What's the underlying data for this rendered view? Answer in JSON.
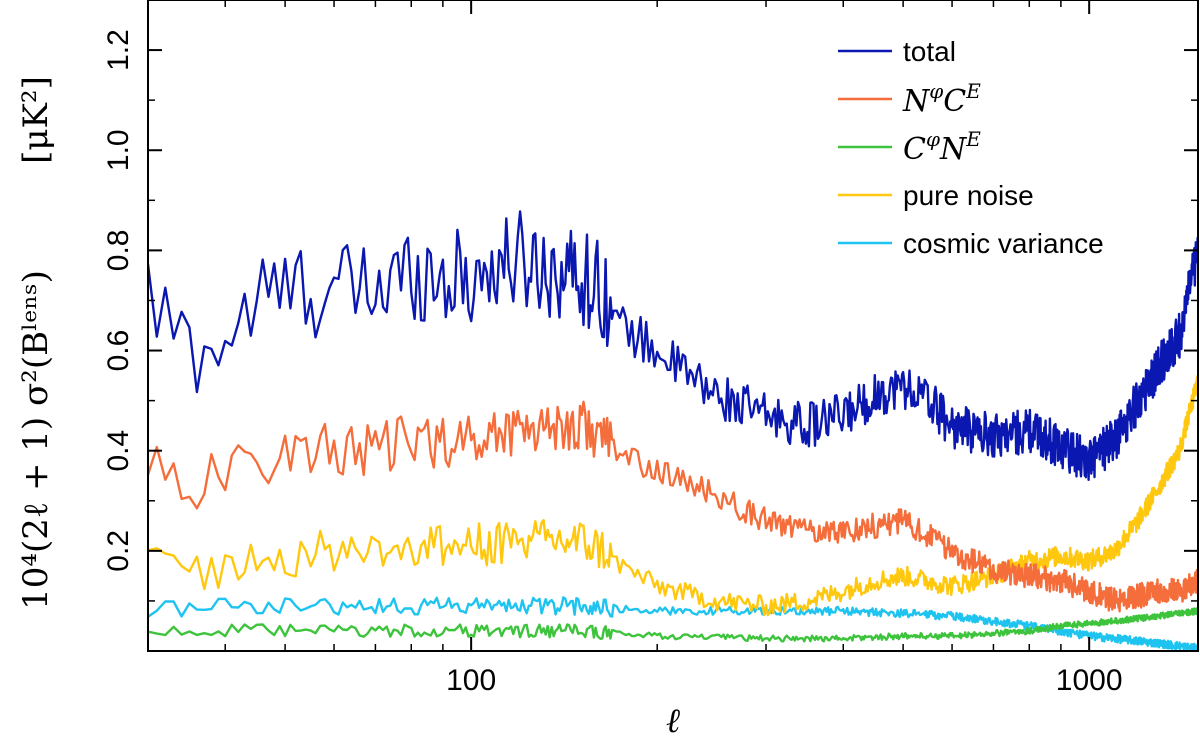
{
  "chart_data": {
    "type": "line",
    "xlabel": "ℓ",
    "ylabel": "10⁴(2ℓ + 1) σ²(Bˡᵉⁿˢ)",
    "yunit": "[μK²]",
    "xscale": "log",
    "xlim": [
      30,
      1500
    ],
    "ylim": [
      0,
      1.3
    ],
    "xticks": [
      {
        "value": 100,
        "label": "100"
      },
      {
        "value": 1000,
        "label": "1000"
      }
    ],
    "yticks": [
      {
        "value": 0.2,
        "label": "0.2"
      },
      {
        "value": 0.4,
        "label": "0.4"
      },
      {
        "value": 0.6,
        "label": "0.6"
      },
      {
        "value": 0.8,
        "label": "0.8"
      },
      {
        "value": 1.0,
        "label": "1.0"
      },
      {
        "value": 1.2,
        "label": "1.2"
      }
    ],
    "grid": false,
    "legend_position": "top-right",
    "series": [
      {
        "name": "total",
        "color": "#0a17b0",
        "noise": 0.045,
        "x": [
          30,
          35,
          40,
          45,
          50,
          60,
          70,
          80,
          90,
          100,
          110,
          120,
          140,
          150,
          165,
          170,
          200,
          230,
          250,
          300,
          350,
          400,
          450,
          500,
          550,
          600,
          700,
          800,
          900,
          1000,
          1100,
          1200,
          1300,
          1400,
          1500
        ],
        "values": [
          0.7,
          0.6,
          0.62,
          0.7,
          0.72,
          0.72,
          0.72,
          0.76,
          0.75,
          0.74,
          0.77,
          0.78,
          0.76,
          0.75,
          0.72,
          0.66,
          0.6,
          0.54,
          0.51,
          0.47,
          0.45,
          0.47,
          0.51,
          0.53,
          0.5,
          0.45,
          0.43,
          0.44,
          0.41,
          0.38,
          0.42,
          0.5,
          0.57,
          0.63,
          0.8
        ]
      },
      {
        "name": "N^φ C^E",
        "color": "#f46d3a",
        "noise": 0.025,
        "x": [
          30,
          35,
          40,
          45,
          50,
          60,
          70,
          80,
          90,
          100,
          120,
          150,
          165,
          170,
          200,
          250,
          300,
          350,
          400,
          450,
          500,
          550,
          600,
          700,
          800,
          900,
          1000,
          1100,
          1200,
          1300,
          1400,
          1500
        ],
        "values": [
          0.39,
          0.33,
          0.35,
          0.38,
          0.4,
          0.4,
          0.4,
          0.42,
          0.42,
          0.42,
          0.45,
          0.45,
          0.43,
          0.4,
          0.36,
          0.31,
          0.26,
          0.24,
          0.24,
          0.25,
          0.26,
          0.23,
          0.2,
          0.16,
          0.15,
          0.14,
          0.12,
          0.1,
          0.11,
          0.12,
          0.12,
          0.14
        ]
      },
      {
        "name": "C^φ N^E",
        "color": "#3ec43c",
        "noise": 0.006,
        "x": [
          30,
          50,
          80,
          100,
          150,
          200,
          300,
          400,
          500,
          600,
          700,
          800,
          900,
          1000,
          1100,
          1200,
          1300,
          1400,
          1500
        ],
        "values": [
          0.04,
          0.04,
          0.04,
          0.04,
          0.04,
          0.03,
          0.025,
          0.025,
          0.03,
          0.03,
          0.035,
          0.04,
          0.05,
          0.055,
          0.06,
          0.065,
          0.07,
          0.075,
          0.08
        ]
      },
      {
        "name": "pure noise",
        "color": "#ffc80f",
        "noise": 0.02,
        "x": [
          30,
          35,
          40,
          50,
          60,
          80,
          100,
          120,
          150,
          165,
          170,
          200,
          250,
          300,
          350,
          400,
          450,
          500,
          550,
          600,
          700,
          800,
          900,
          1000,
          1100,
          1200,
          1300,
          1400,
          1500
        ],
        "values": [
          0.18,
          0.16,
          0.17,
          0.19,
          0.2,
          0.21,
          0.21,
          0.22,
          0.22,
          0.2,
          0.18,
          0.13,
          0.1,
          0.09,
          0.1,
          0.12,
          0.14,
          0.15,
          0.14,
          0.13,
          0.15,
          0.18,
          0.19,
          0.18,
          0.2,
          0.26,
          0.33,
          0.4,
          0.54
        ]
      },
      {
        "name": "cosmic variance",
        "color": "#1ec4ef",
        "noise": 0.008,
        "x": [
          30,
          50,
          80,
          100,
          150,
          200,
          300,
          400,
          500,
          600,
          700,
          800,
          900,
          1000,
          1100,
          1200,
          1300,
          1400,
          1500
        ],
        "values": [
          0.085,
          0.09,
          0.09,
          0.09,
          0.09,
          0.08,
          0.08,
          0.08,
          0.075,
          0.07,
          0.06,
          0.05,
          0.04,
          0.03,
          0.025,
          0.02,
          0.015,
          0.01,
          0.005
        ]
      }
    ]
  }
}
